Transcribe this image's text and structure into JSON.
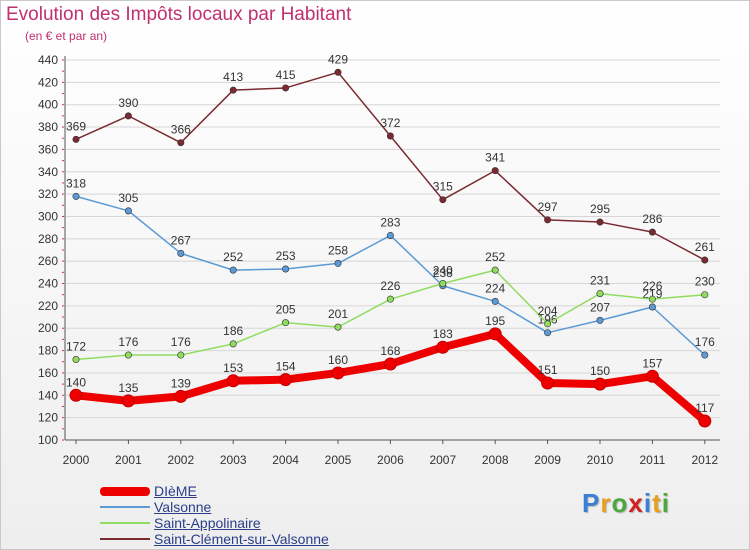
{
  "header": {
    "title": "Evolution des Impôts locaux par Habitant",
    "subtitle": "(en € et par an)"
  },
  "logo": {
    "text": "Proxiti",
    "letter_colors": [
      "#3a7fd5",
      "#e8a020",
      "#4aa83c",
      "#d42020",
      "#3a7fd5",
      "#e8a020",
      "#4aa83c"
    ]
  },
  "chart_data": {
    "type": "line",
    "x": [
      "2000",
      "2001",
      "2002",
      "2003",
      "2004",
      "2005",
      "2006",
      "2007",
      "2008",
      "2009",
      "2010",
      "2011",
      "2012"
    ],
    "ylim": [
      100,
      440
    ],
    "yticks": [
      100,
      120,
      140,
      160,
      180,
      200,
      220,
      240,
      260,
      280,
      300,
      320,
      340,
      360,
      380,
      400,
      420,
      440
    ],
    "grid": "horizontal",
    "legend_placement": "bottom-left",
    "series": [
      {
        "name": "DIèME",
        "values": [
          140,
          135,
          139,
          153,
          154,
          160,
          168,
          183,
          195,
          151,
          150,
          157,
          117
        ],
        "color": "#ee0000",
        "highlight": true
      },
      {
        "name": "Valsonne",
        "values": [
          318,
          305,
          267,
          252,
          253,
          258,
          283,
          238,
          224,
          196,
          207,
          219,
          176
        ],
        "color": "#5b9ad5",
        "highlight": false
      },
      {
        "name": "Saint-Appolinaire",
        "values": [
          172,
          176,
          176,
          186,
          205,
          201,
          226,
          240,
          252,
          204,
          231,
          226,
          230
        ],
        "color": "#8fdc5e",
        "highlight": false
      },
      {
        "name": "Saint-Clément-sur-Valsonne",
        "values": [
          369,
          390,
          366,
          413,
          415,
          429,
          372,
          315,
          341,
          297,
          295,
          286,
          261
        ],
        "color": "#7a2a30",
        "highlight": false
      }
    ]
  }
}
